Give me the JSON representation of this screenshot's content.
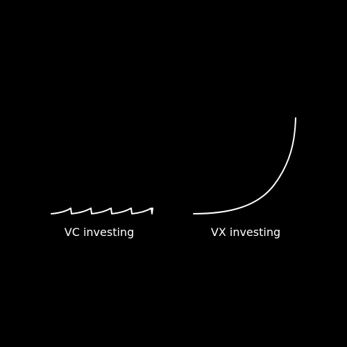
{
  "diagram": {
    "left_panel": {
      "label": "VC investing",
      "shape": "sawtooth"
    },
    "right_panel": {
      "label": "VX investing",
      "shape": "exponential-curve"
    }
  },
  "colors": {
    "background": "#000000",
    "stroke": "#ffffff",
    "text": "#ffffff"
  }
}
